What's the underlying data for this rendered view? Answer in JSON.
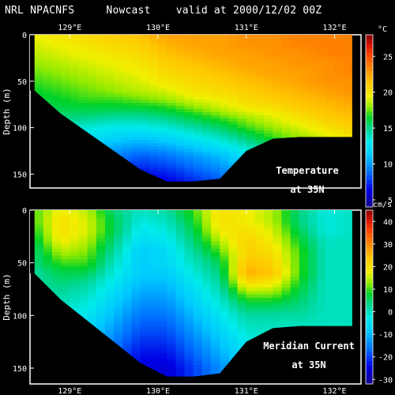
{
  "header": {
    "title": "NRL NPACNFS     Nowcast    valid at 2000/12/02 00Z"
  },
  "chart_data": [
    {
      "type": "heatmap",
      "panel": "top",
      "annotation": [
        "Temperature",
        "at 35N"
      ],
      "ylabel": "Depth (m)",
      "xlabel": "",
      "x_ticks": [
        "129°E",
        "130°E",
        "131°E",
        "132°E"
      ],
      "y_ticks": [
        "0",
        "50",
        "100",
        "150"
      ],
      "xlim": [
        128.55,
        132.3
      ],
      "ylim": [
        0,
        165
      ],
      "colorbar": {
        "unit": "°C",
        "ticks": [
          "5",
          "10",
          "15",
          "20",
          "25"
        ],
        "range": [
          4,
          28
        ]
      },
      "x_grid": [
        128.6,
        128.9,
        129.2,
        129.5,
        129.8,
        130.1,
        130.4,
        130.7,
        131.0,
        131.3,
        131.6,
        131.9,
        132.2
      ],
      "depth_grid": [
        0,
        10,
        20,
        30,
        40,
        50,
        60,
        70,
        80,
        90,
        100,
        110,
        120,
        130,
        140,
        150,
        160
      ],
      "bottom_depth": [
        60,
        85,
        105,
        125,
        145,
        158,
        158,
        155,
        125,
        112,
        110,
        110,
        110
      ],
      "values": [
        [
          19.5,
          20.0,
          20.5,
          21.0,
          21.5,
          22.5,
          22.5,
          22.5,
          23.0,
          23.0,
          23.5,
          23.5,
          23.5
        ],
        [
          19.0,
          19.5,
          20.0,
          20.5,
          21.0,
          22.0,
          22.5,
          22.5,
          23.0,
          23.0,
          23.5,
          23.5,
          23.5
        ],
        [
          18.5,
          19.0,
          19.5,
          20.0,
          20.5,
          21.5,
          22.0,
          22.5,
          22.5,
          23.0,
          23.0,
          23.5,
          23.5
        ],
        [
          18.0,
          18.5,
          19.0,
          19.5,
          20.0,
          21.0,
          21.5,
          22.0,
          22.5,
          22.5,
          23.0,
          23.0,
          23.5
        ],
        [
          17.5,
          18.0,
          18.5,
          19.0,
          19.5,
          20.5,
          21.0,
          21.5,
          22.0,
          22.5,
          22.5,
          23.0,
          23.5
        ],
        [
          17.0,
          17.5,
          18.0,
          18.5,
          19.0,
          20.0,
          20.5,
          21.0,
          21.5,
          22.0,
          22.5,
          23.0,
          23.0
        ],
        [
          16.5,
          17.0,
          17.5,
          18.0,
          18.5,
          19.0,
          20.0,
          20.5,
          21.0,
          21.5,
          22.0,
          22.5,
          23.0
        ],
        [
          16.0,
          16.5,
          17.0,
          17.0,
          17.5,
          18.0,
          19.0,
          19.5,
          20.5,
          21.0,
          21.5,
          22.0,
          22.5
        ],
        [
          15.5,
          16.0,
          16.0,
          16.0,
          16.0,
          16.5,
          17.5,
          18.5,
          19.5,
          20.0,
          21.0,
          21.5,
          22.0
        ],
        [
          15.0,
          15.0,
          15.0,
          14.5,
          14.5,
          15.0,
          16.0,
          17.0,
          18.0,
          19.0,
          20.0,
          21.0,
          21.5
        ],
        [
          14.0,
          14.0,
          13.5,
          13.0,
          13.0,
          13.5,
          14.5,
          15.5,
          17.0,
          18.0,
          19.0,
          20.0,
          21.0
        ],
        [
          13.0,
          13.0,
          12.5,
          12.0,
          11.5,
          12.0,
          13.0,
          14.0,
          15.5,
          17.0,
          18.0,
          19.0,
          20.0
        ],
        [
          12.0,
          12.0,
          11.5,
          10.5,
          10.0,
          10.5,
          11.5,
          12.5,
          14.0,
          15.5,
          17.0,
          18.0,
          19.0
        ],
        [
          11.0,
          11.0,
          10.5,
          9.5,
          8.5,
          9.0,
          10.0,
          11.0,
          12.5,
          14.0,
          15.5,
          17.0,
          18.0
        ],
        [
          10.0,
          10.0,
          9.5,
          8.5,
          7.5,
          8.0,
          9.0,
          10.0,
          11.5,
          13.0,
          14.5,
          16.0,
          17.0
        ],
        [
          9.0,
          9.0,
          8.5,
          7.5,
          6.5,
          7.0,
          8.0,
          9.0,
          10.5,
          12.0,
          13.5,
          15.0,
          16.0
        ],
        [
          8.0,
          8.0,
          7.5,
          6.5,
          6.0,
          6.0,
          7.0,
          8.0,
          9.5,
          11.0,
          12.5,
          14.0,
          15.0
        ]
      ]
    },
    {
      "type": "heatmap",
      "panel": "bottom",
      "annotation": [
        "Meridian Current",
        "at 35N"
      ],
      "ylabel": "Depth (m)",
      "xlabel": "",
      "x_ticks": [
        "129°E",
        "130°E",
        "131°E",
        "132°E"
      ],
      "y_ticks": [
        "0",
        "50",
        "100",
        "150"
      ],
      "xlim": [
        128.55,
        132.3
      ],
      "ylim": [
        0,
        165
      ],
      "colorbar": {
        "unit": "cm/s",
        "ticks": [
          "-30",
          "-20",
          "-10",
          "0",
          "10",
          "20",
          "30",
          "40"
        ],
        "range": [
          -32,
          45
        ]
      },
      "x_grid": [
        128.6,
        128.9,
        129.2,
        129.5,
        129.8,
        130.1,
        130.4,
        130.7,
        131.0,
        131.3,
        131.6,
        131.9,
        132.2
      ],
      "depth_grid": [
        0,
        10,
        20,
        30,
        40,
        50,
        60,
        70,
        80,
        90,
        100,
        110,
        120,
        130,
        140,
        150,
        160
      ],
      "bottom_depth": [
        60,
        85,
        105,
        125,
        145,
        158,
        158,
        155,
        125,
        112,
        110,
        110,
        110
      ],
      "values": [
        [
          10,
          18,
          14,
          4,
          0,
          2,
          10,
          20,
          18,
          14,
          4,
          -2,
          0
        ],
        [
          10,
          20,
          16,
          6,
          -2,
          0,
          8,
          20,
          18,
          14,
          4,
          -2,
          0
        ],
        [
          8,
          20,
          16,
          6,
          -4,
          -2,
          6,
          18,
          20,
          16,
          6,
          -2,
          0
        ],
        [
          6,
          18,
          14,
          4,
          -6,
          -4,
          4,
          14,
          22,
          18,
          8,
          0,
          0
        ],
        [
          4,
          14,
          12,
          2,
          -8,
          -6,
          2,
          10,
          22,
          20,
          10,
          0,
          0
        ],
        [
          4,
          10,
          10,
          0,
          -8,
          -6,
          0,
          6,
          24,
          22,
          10,
          0,
          0
        ],
        [
          2,
          6,
          6,
          -2,
          -8,
          -8,
          -2,
          4,
          26,
          24,
          10,
          0,
          0
        ],
        [
          2,
          4,
          2,
          -4,
          -10,
          -10,
          -4,
          2,
          20,
          18,
          8,
          0,
          0
        ],
        [
          0,
          2,
          0,
          -6,
          -12,
          -12,
          -6,
          0,
          12,
          12,
          6,
          0,
          0
        ],
        [
          0,
          0,
          -2,
          -8,
          -14,
          -14,
          -8,
          -2,
          6,
          6,
          4,
          0,
          0
        ],
        [
          0,
          -2,
          -4,
          -10,
          -16,
          -16,
          -10,
          -4,
          2,
          2,
          2,
          0,
          0
        ],
        [
          0,
          -4,
          -6,
          -12,
          -18,
          -18,
          -12,
          -6,
          0,
          0,
          0,
          0,
          0
        ],
        [
          0,
          -6,
          -8,
          -14,
          -20,
          -20,
          -14,
          -8,
          -2,
          0,
          0,
          0,
          0
        ],
        [
          0,
          -6,
          -10,
          -16,
          -22,
          -22,
          -16,
          -10,
          -4,
          0,
          0,
          0,
          0
        ],
        [
          0,
          -8,
          -12,
          -18,
          -24,
          -24,
          -18,
          -12,
          -6,
          0,
          0,
          0,
          0
        ],
        [
          0,
          -8,
          -12,
          -18,
          -24,
          -26,
          -20,
          -14,
          -8,
          0,
          0,
          0,
          0
        ],
        [
          0,
          -8,
          -12,
          -18,
          -24,
          -26,
          -20,
          -14,
          -8,
          0,
          0,
          0,
          0
        ]
      ]
    }
  ]
}
